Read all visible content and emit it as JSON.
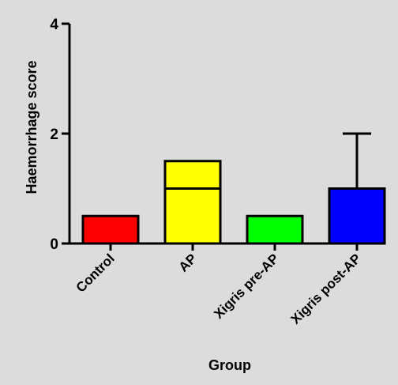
{
  "chart_data": {
    "type": "bar",
    "title": "",
    "xlabel": "Group",
    "ylabel": "Haemorrhage score",
    "ylim": [
      0,
      4
    ],
    "yticks": [
      0,
      2,
      4
    ],
    "categories": [
      "Control",
      "AP",
      "Xigris pre-AP",
      "Xigris post-AP"
    ],
    "values": [
      0.5,
      1.5,
      0.5,
      1.0
    ],
    "median_lines": [
      null,
      1.0,
      null,
      null
    ],
    "error_upper": [
      null,
      null,
      null,
      2.0
    ],
    "colors": [
      "#ff0000",
      "#ffff00",
      "#00ff00",
      "#0000ff"
    ],
    "grid": false,
    "legend": "none"
  }
}
